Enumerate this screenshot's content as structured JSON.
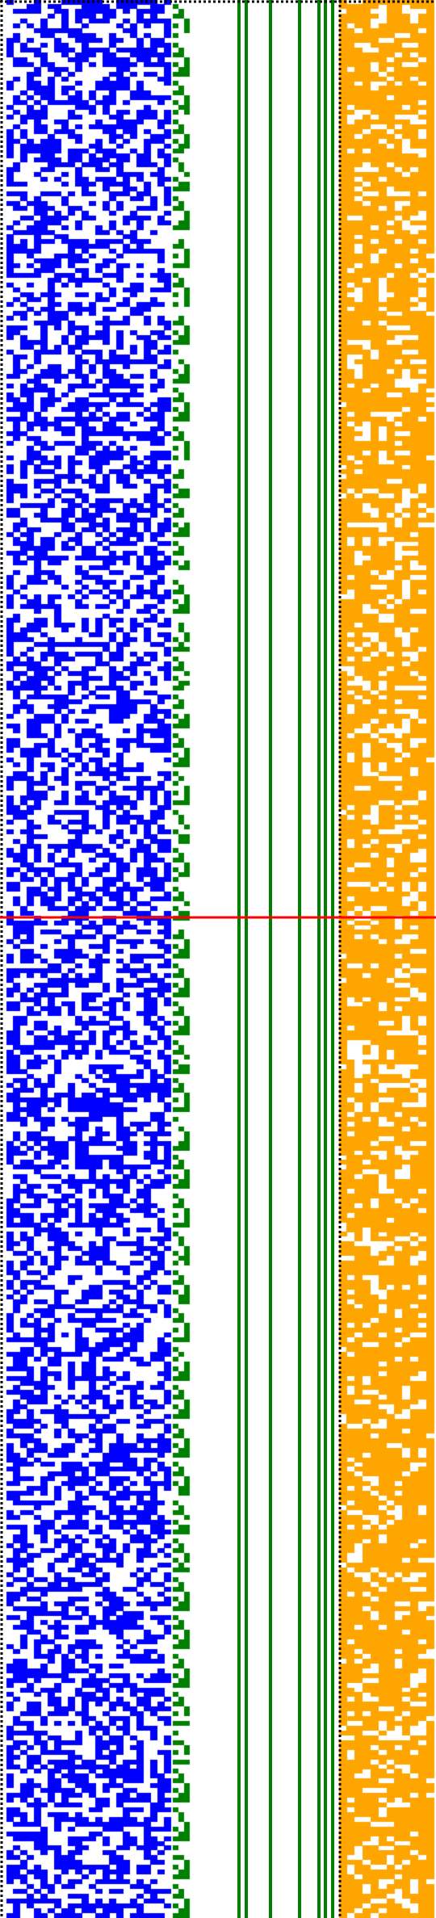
{
  "colors": {
    "background": "#ffffff",
    "bits_left": "#0000ff",
    "counter": "#008000",
    "bits_right": "#ffa500",
    "separator": "#000000",
    "marker": "#ff0000"
  },
  "grid": {
    "rows": 400,
    "left_region_columns": 24,
    "binary_counter_columns": 3,
    "right_region_columns": 12,
    "fill_probability_left": 0.5,
    "fill_probability_right": 0.75
  },
  "counter_bars": {
    "constant_lines": 7,
    "staircase_columns": 5
  },
  "marker_row_fraction": 0.5,
  "separators": [
    "left-edge",
    "top-edge",
    "right-region-left-edge"
  ]
}
